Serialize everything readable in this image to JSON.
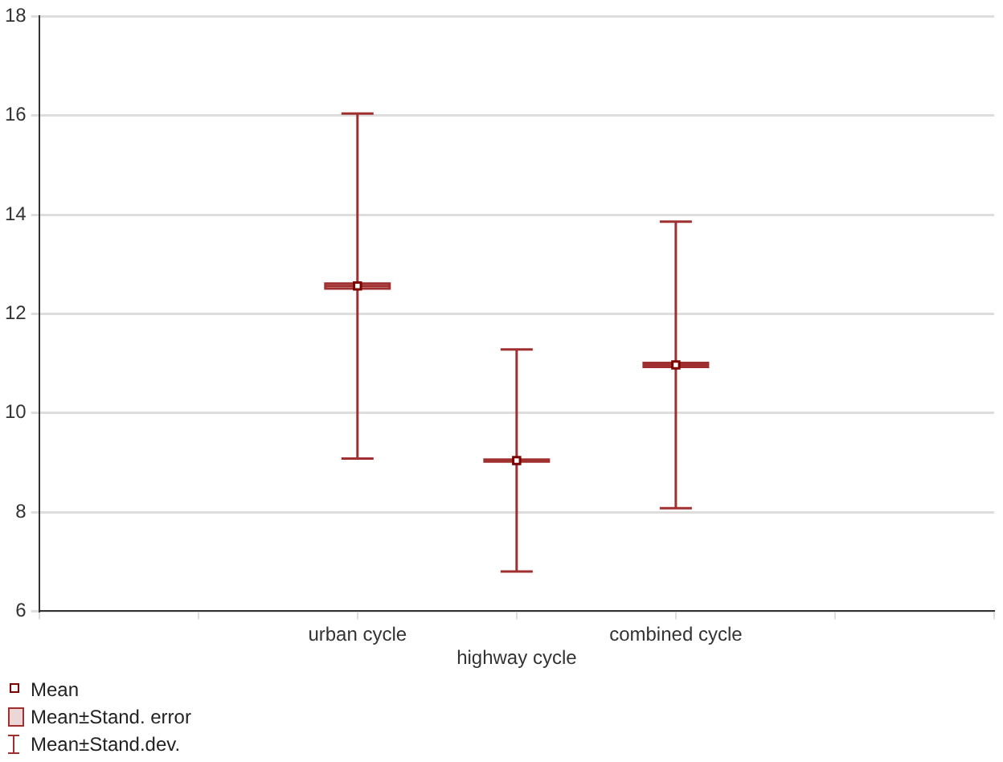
{
  "chart_data": {
    "type": "box",
    "categories": [
      null,
      null,
      "urban cycle",
      "highway cycle",
      "combined cycle",
      null,
      null
    ],
    "series": [
      {
        "name": "Mean",
        "type": "scatter",
        "marker": "square",
        "color": "#800000",
        "x": [
          "urban cycle",
          "highway cycle",
          "combined cycle"
        ],
        "values": [
          12.56,
          9.04,
          10.97
        ]
      },
      {
        "name": "Mean±Stand. error",
        "color": "#a03030",
        "boxes": [
          null,
          null,
          {
            "low": 9.08,
            "q1": 12.51,
            "median": 12.56,
            "q3": 12.61,
            "high": 16.04
          },
          {
            "low": 6.8,
            "q1": 9.02,
            "median": 9.04,
            "q3": 9.06,
            "high": 11.28
          },
          {
            "low": 8.08,
            "q1": 10.93,
            "median": 10.97,
            "q3": 11.01,
            "high": 13.86
          },
          null,
          null
        ]
      }
    ],
    "annotations": [
      "Mean±Stand.dev."
    ],
    "ylim": [
      6,
      18
    ],
    "yticks": [
      6,
      8,
      10,
      12,
      14,
      16,
      18
    ],
    "grid": "y",
    "legend": "bottom left"
  }
}
